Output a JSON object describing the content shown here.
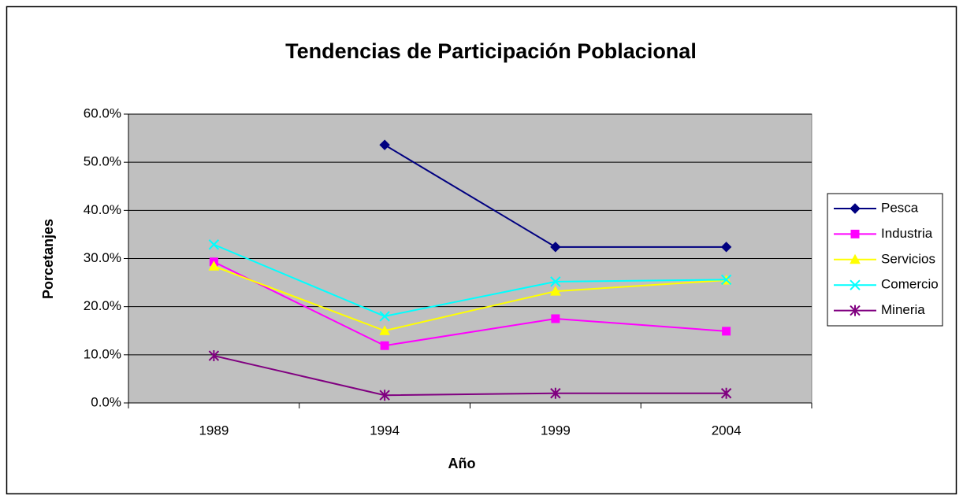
{
  "chart_data": {
    "type": "line",
    "title": "Tendencias de Participación Poblacional",
    "x_label": "Año",
    "y_label": "Porcetanjes",
    "categories": [
      "1989",
      "1994",
      "1999",
      "2004"
    ],
    "series": [
      {
        "name": "Pesca",
        "color": "#000080",
        "marker": "diamond",
        "values": [
          null,
          53.6,
          32.4,
          32.4
        ]
      },
      {
        "name": "Industria",
        "color": "#ff00ff",
        "marker": "square",
        "values": [
          29.3,
          11.9,
          17.5,
          14.9
        ]
      },
      {
        "name": "Servicios",
        "color": "#ffff00",
        "marker": "triangle",
        "values": [
          28.4,
          15.0,
          23.2,
          25.5
        ]
      },
      {
        "name": "Comercio",
        "color": "#00ffff",
        "marker": "x",
        "values": [
          32.9,
          18.0,
          25.2,
          25.6
        ]
      },
      {
        "name": "Mineria",
        "color": "#800080",
        "marker": "star",
        "values": [
          9.8,
          1.6,
          2.0,
          2.0
        ]
      }
    ],
    "ylim": [
      0,
      60
    ],
    "yticks": [
      {
        "value": 0,
        "label": "0.0%"
      },
      {
        "value": 10,
        "label": "10.0%"
      },
      {
        "value": 20,
        "label": "20.0%"
      },
      {
        "value": 30,
        "label": "30.0%"
      },
      {
        "value": 40,
        "label": "40.0%"
      },
      {
        "value": 50,
        "label": "50.0%"
      },
      {
        "value": 60,
        "label": "60.0%"
      }
    ],
    "grid": true,
    "legend": "right",
    "plot_background": "#c0c0c0"
  }
}
